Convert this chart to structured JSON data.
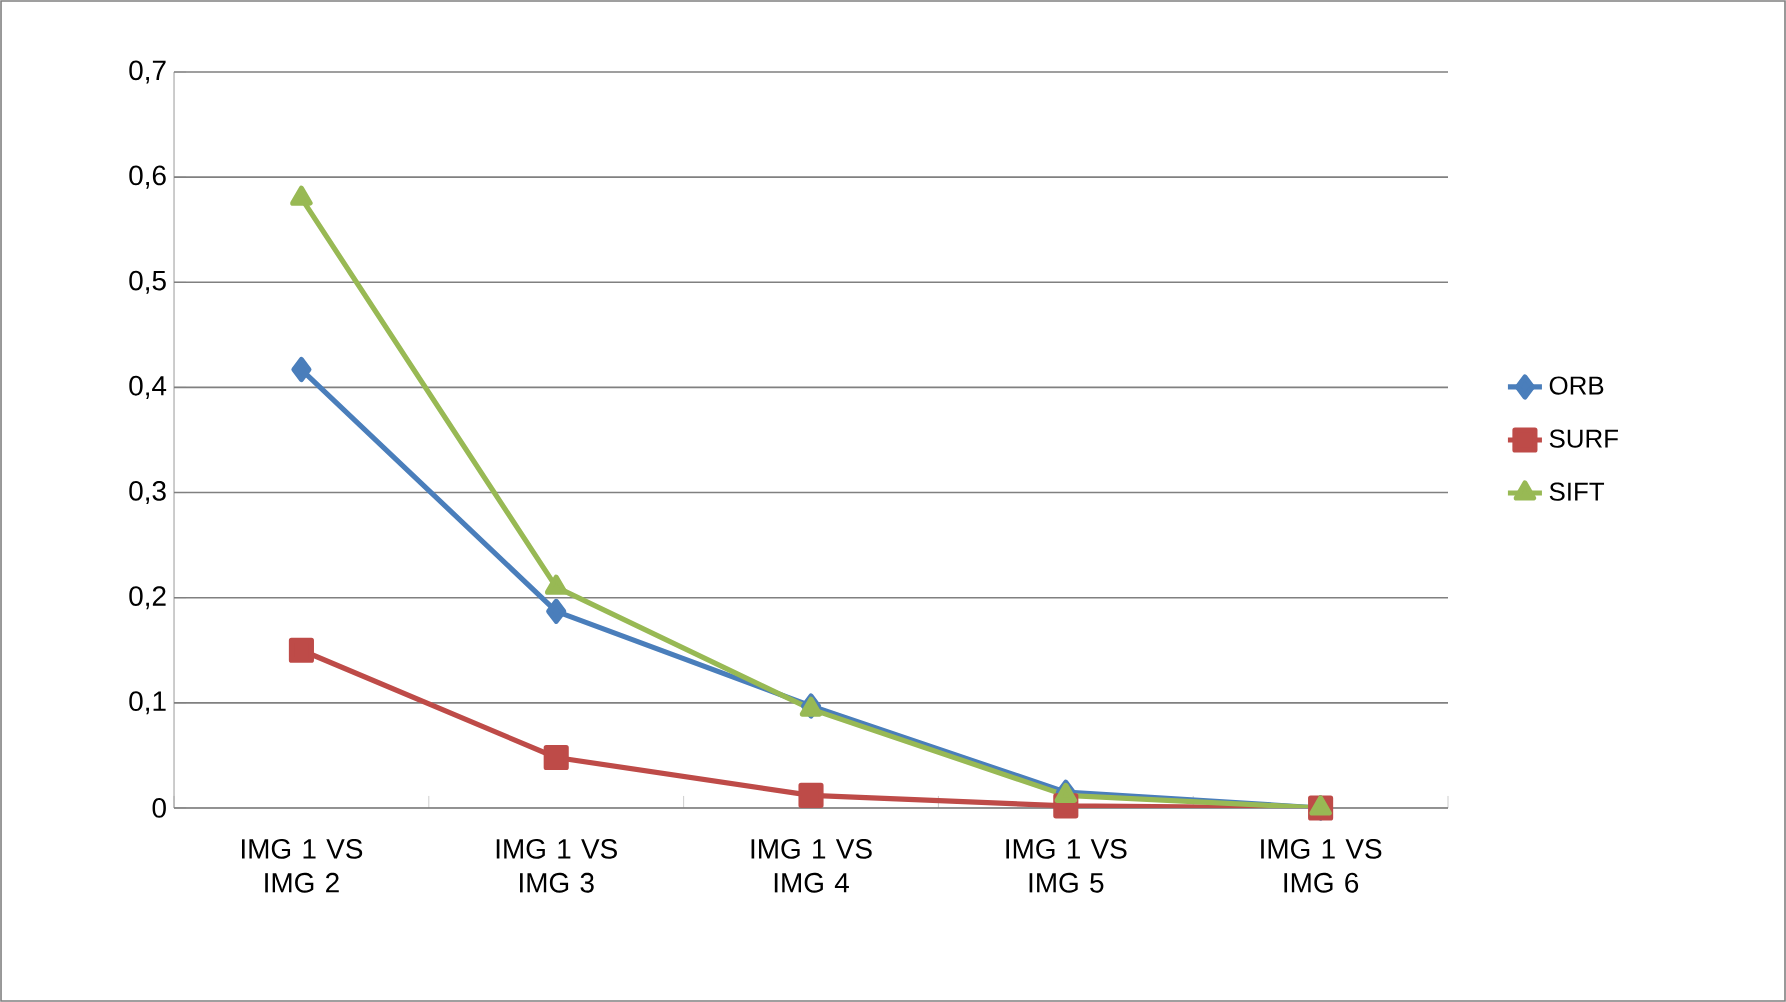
{
  "chart_data": {
    "type": "line",
    "categories": [
      "IMG 1 VS IMG 2",
      "IMG 1 VS IMG 3",
      "IMG 1 VS IMG 4",
      "IMG 1 VS IMG 5",
      "IMG 1 VS IMG 6"
    ],
    "series": [
      {
        "name": "ORB",
        "color": "#4a7ebb",
        "marker": "diamond",
        "values": [
          0.417,
          0.187,
          0.097,
          0.015,
          0.0
        ]
      },
      {
        "name": "SURF",
        "color": "#be4b48",
        "marker": "square",
        "values": [
          0.15,
          0.048,
          0.012,
          0.002,
          0.0
        ]
      },
      {
        "name": "SIFT",
        "color": "#98b954",
        "marker": "triangle",
        "values": [
          0.58,
          0.21,
          0.094,
          0.012,
          0.0
        ]
      }
    ],
    "ylim": [
      0,
      0.7
    ],
    "yticks": [
      0,
      {
        "value": 0.1,
        "label": "0,1"
      },
      {
        "value": 0.2,
        "label": "0,2"
      },
      {
        "value": 0.3,
        "label": "0,3"
      },
      {
        "value": 0.4,
        "label": "0,4"
      },
      {
        "value": 0.5,
        "label": "0,5"
      },
      {
        "value": 0.6,
        "label": "0,6"
      },
      {
        "value": 0.7,
        "label": "0,7"
      }
    ],
    "grid": "y",
    "legend": "right",
    "line_style": "solid"
  }
}
